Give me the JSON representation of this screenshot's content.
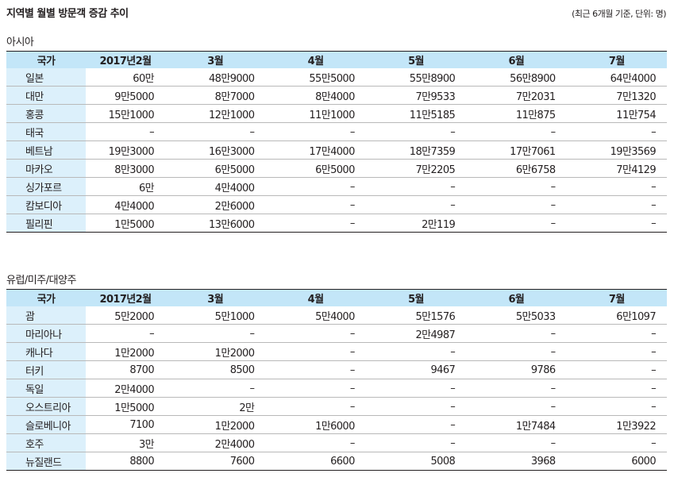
{
  "title": "지역별 월별 방문객 증감 추이",
  "note": "(최근 6개월 기준, 단위: 명)",
  "headers": [
    "국가",
    "2017년2월",
    "3월",
    "4월",
    "5월",
    "6월",
    "7월"
  ],
  "colors": {
    "header_bg": "#c3e6f8",
    "country_bg": "#dcf0fb"
  },
  "sections": [
    {
      "title": "아시아",
      "rows": [
        [
          "일본",
          "60만",
          "48만9000",
          "55만5000",
          "55만8900",
          "56만8900",
          "64만4000"
        ],
        [
          "대만",
          "9만5000",
          "8만7000",
          "8만4000",
          "7만9533",
          "7만2031",
          "7만1320"
        ],
        [
          "홍콩",
          "15만1000",
          "12만1000",
          "11만1000",
          "11만5185",
          "11만875",
          "11만754"
        ],
        [
          "태국",
          "–",
          "–",
          "–",
          "–",
          "–",
          "–"
        ],
        [
          "베트남",
          "19만3000",
          "16만3000",
          "17만4000",
          "18만7359",
          "17만7061",
          "19만3569"
        ],
        [
          "마카오",
          "8만3000",
          "6만5000",
          "6만5000",
          "7만2205",
          "6만6758",
          "7만4129"
        ],
        [
          "싱가포르",
          "6만",
          "4만4000",
          "–",
          "–",
          "–",
          "–"
        ],
        [
          "캄보디아",
          "4만4000",
          "2만6000",
          "–",
          "–",
          "–",
          "–"
        ],
        [
          "필리핀",
          "1만5000",
          "13만6000",
          "–",
          "2만119",
          "–",
          "–"
        ]
      ]
    },
    {
      "title": "유럽/미주/대양주",
      "rows": [
        [
          "괌",
          "5만2000",
          "5만1000",
          "5만4000",
          "5만1576",
          "5만5033",
          "6만1097"
        ],
        [
          "마리아나",
          "–",
          "–",
          "–",
          "2만4987",
          "–",
          "–"
        ],
        [
          "캐나다",
          "1만2000",
          "1만2000",
          "–",
          "–",
          "–",
          "–"
        ],
        [
          "터키",
          "8700",
          "8500",
          "–",
          "9467",
          "9786",
          "–"
        ],
        [
          "독일",
          "2만4000",
          "–",
          "–",
          "–",
          "–",
          "–"
        ],
        [
          "오스트리아",
          "1만5000",
          "2만",
          "–",
          "–",
          "–",
          "–"
        ],
        [
          "슬로베니아",
          "7100",
          "1만2000",
          "1만6000",
          "–",
          "1만7484",
          "1만3922"
        ],
        [
          "호주",
          "3만",
          "2만4000",
          "–",
          "–",
          "–",
          "–"
        ],
        [
          "뉴질랜드",
          "8800",
          "7600",
          "6600",
          "5008",
          "3968",
          "6000"
        ]
      ]
    }
  ]
}
